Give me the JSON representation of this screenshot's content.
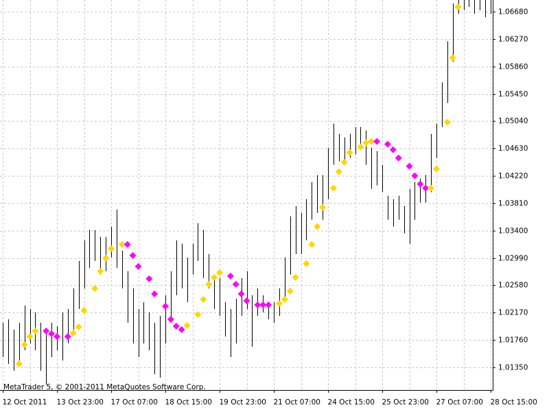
{
  "chart_data": {
    "type": "ohlc",
    "footer": "MetaTrader 5, © 2001-2011 MetaQuotes Software Corp.",
    "bar_color": "#000000",
    "grid": true,
    "categories": [
      "12 Oct 2011",
      null,
      null,
      null,
      null,
      null,
      null,
      null,
      null,
      null,
      "13 Oct 23:00",
      null,
      null,
      null,
      null,
      null,
      null,
      null,
      null,
      null,
      "17 Oct 07:00",
      null,
      null,
      null,
      null,
      null,
      null,
      null,
      null,
      null,
      "18 Oct 15:00",
      null,
      null,
      null,
      null,
      null,
      null,
      null,
      null,
      null,
      "19 Oct 23:00",
      null,
      null,
      null,
      null,
      null,
      null,
      null,
      null,
      null,
      "21 Oct 07:00",
      null,
      null,
      null,
      null,
      null,
      null,
      null,
      null,
      null,
      "24 Oct 15:00",
      null,
      null,
      null,
      null,
      null,
      null,
      null,
      null,
      null,
      "25 Oct 23:00",
      null,
      null,
      null,
      null,
      null,
      null,
      null,
      null,
      null,
      "27 Oct 07:00",
      null,
      null,
      null,
      null,
      null,
      null,
      null,
      null,
      null,
      "28 Oct 15:00"
    ],
    "high": [
      1.02018,
      1.0207,
      1.01915,
      1.02018,
      1.02276,
      1.02224,
      1.02173,
      1.02018,
      1.01915,
      1.02018,
      1.01967,
      1.02173,
      1.02224,
      1.02533,
      1.02944,
      1.03253,
      1.03408,
      1.03408,
      1.03305,
      1.03305,
      1.03459,
      1.03716,
      1.03099,
      1.0279,
      1.02533,
      1.02224,
      1.02327,
      1.02173,
      1.02018,
      1.02121,
      1.0243,
      1.0279,
      1.03253,
      1.03202,
      1.02996,
      1.03202,
      1.0351,
      1.03408,
      1.03047,
      1.02739,
      1.02687,
      1.02327,
      1.02224,
      1.02379,
      1.02687,
      1.0279,
      1.0243,
      1.02533,
      1.0243,
      1.02327,
      1.02327,
      1.02533,
      1.02996,
      1.03613,
      1.03768,
      1.03665,
      1.03871,
      1.04128,
      1.04231,
      1.04231,
      1.04642,
      1.05003,
      1.04848,
      1.04797,
      1.04848,
      1.04951,
      1.04951,
      1.049,
      1.04642,
      1.04591,
      1.04385,
      1.03922,
      1.03871,
      1.03922,
      1.03768,
      1.04025,
      1.04128,
      1.04179,
      1.04231,
      1.04848,
      1.05003,
      1.0562,
      1.06238,
      1.06804,
      1.06855,
      1.06855,
      1.06855,
      1.06855,
      1.06855,
      1.06855,
      1.06855
    ],
    "low": [
      1.01504,
      1.01401,
      1.01298,
      1.01452,
      1.01606,
      1.01709,
      1.01606,
      1.01298,
      1.01092,
      1.01504,
      1.01606,
      1.01452,
      1.01709,
      1.01915,
      1.02224,
      1.02533,
      1.02842,
      1.02944,
      1.02739,
      1.0279,
      1.02996,
      1.02842,
      1.02533,
      1.02018,
      1.01709,
      1.01504,
      1.01709,
      1.01606,
      1.01247,
      1.01195,
      1.01709,
      1.02018,
      1.0243,
      1.02533,
      1.02327,
      1.02739,
      1.02944,
      1.02687,
      1.02533,
      1.02224,
      1.02121,
      1.01812,
      1.01504,
      1.01709,
      1.02121,
      1.02224,
      1.01658,
      1.02121,
      1.02173,
      1.0207,
      1.02018,
      1.02121,
      1.02327,
      1.02739,
      1.03047,
      1.03047,
      1.03253,
      1.03562,
      1.03665,
      1.03562,
      1.03871,
      1.04385,
      1.04437,
      1.04385,
      1.04488,
      1.0454,
      1.04642,
      1.04385,
      1.04025,
      1.04076,
      1.03974,
      1.03562,
      1.03459,
      1.03562,
      1.03356,
      1.03202,
      1.03562,
      1.03819,
      1.03819,
      1.03974,
      1.04488,
      1.04951,
      1.05311,
      1.05929,
      1.06649,
      1.06701,
      1.06752,
      1.06649,
      1.06701,
      1.06598,
      1.06649
    ],
    "dots": {
      "values": [
        null,
        null,
        null,
        1.01401,
        1.01689,
        1.01812,
        1.01895,
        null,
        1.01895,
        1.01854,
        1.01812,
        null,
        1.01812,
        1.01864,
        1.01957,
        1.02204,
        null,
        1.02533,
        1.0279,
        1.02986,
        1.0313,
        null,
        1.03191,
        1.03191,
        1.03027,
        1.02862,
        null,
        1.02677,
        1.02451,
        null,
        1.02265,
        1.0207,
        1.01967,
        1.01915,
        1.01977,
        null,
        1.02142,
        1.02368,
        1.02595,
        1.02697,
        1.02769,
        null,
        1.02718,
        1.02595,
        1.02451,
        1.02348,
        null,
        1.02286,
        1.02286,
        1.02286,
        null,
        1.02307,
        1.02368,
        1.02492,
        1.02697,
        null,
        1.02903,
        1.03191,
        1.03459,
        1.03747,
        null,
        1.04035,
        1.04282,
        1.04426,
        1.0457,
        null,
        1.04653,
        1.04714,
        1.04735,
        1.04735,
        null,
        1.04694,
        1.04612,
        1.04488,
        null,
        1.04365,
        1.04221,
        1.04097,
        1.04035,
        1.04035,
        1.04323,
        null,
        1.05023,
        1.05991,
        1.06752,
        null,
        null,
        null,
        null,
        null,
        null
      ],
      "colors": [
        null,
        null,
        null,
        "#ffd700",
        "#ffd700",
        "#ffd700",
        "#ffd700",
        null,
        "#ff00ff",
        "#ff00ff",
        "#ff00ff",
        null,
        "#ff00ff",
        "#ffd700",
        "#ffd700",
        "#ffd700",
        null,
        "#ffd700",
        "#ffd700",
        "#ffd700",
        "#ffd700",
        null,
        "#ffd700",
        "#ff00ff",
        "#ff00ff",
        "#ff00ff",
        null,
        "#ff00ff",
        "#ff00ff",
        null,
        "#ff00ff",
        "#ff00ff",
        "#ff00ff",
        "#ff00ff",
        "#ffd700",
        null,
        "#ffd700",
        "#ffd700",
        "#ffd700",
        "#ffd700",
        "#ffd700",
        null,
        "#ff00ff",
        "#ff00ff",
        "#ff00ff",
        "#ff00ff",
        null,
        "#ff00ff",
        "#ff00ff",
        "#ff00ff",
        null,
        "#ffd700",
        "#ffd700",
        "#ffd700",
        "#ffd700",
        null,
        "#ffd700",
        "#ffd700",
        "#ffd700",
        "#ffd700",
        null,
        "#ffd700",
        "#ffd700",
        "#ffd700",
        "#ffd700",
        null,
        "#ffd700",
        "#ffd700",
        "#ffd700",
        "#ff00ff",
        null,
        "#ff00ff",
        "#ff00ff",
        "#ff00ff",
        null,
        "#ff00ff",
        "#ff00ff",
        "#ff00ff",
        "#ff00ff",
        "#ffd700",
        "#ffd700",
        null,
        "#ffd700",
        "#ffd700",
        "#ffd700",
        null,
        null,
        null,
        null,
        null,
        null
      ]
    },
    "ylim": [
      1.0101,
      1.06855
    ],
    "yticks": [
      {
        "value": 1.0135,
        "label": "1.01350"
      },
      {
        "value": 1.0176,
        "label": "1.01760"
      },
      {
        "value": 1.0217,
        "label": "1.02170"
      },
      {
        "value": 1.0258,
        "label": "1.02580"
      },
      {
        "value": 1.0299,
        "label": "1.02990"
      },
      {
        "value": 1.034,
        "label": "1.03400"
      },
      {
        "value": 1.0381,
        "label": "1.03810"
      },
      {
        "value": 1.0422,
        "label": "1.04220"
      },
      {
        "value": 1.0463,
        "label": "1.04630"
      },
      {
        "value": 1.0504,
        "label": "1.05040"
      },
      {
        "value": 1.0545,
        "label": "1.05450"
      },
      {
        "value": 1.0586,
        "label": "1.05860"
      },
      {
        "value": 1.0627,
        "label": "1.06270"
      },
      {
        "value": 1.0668,
        "label": "1.06680"
      }
    ]
  }
}
